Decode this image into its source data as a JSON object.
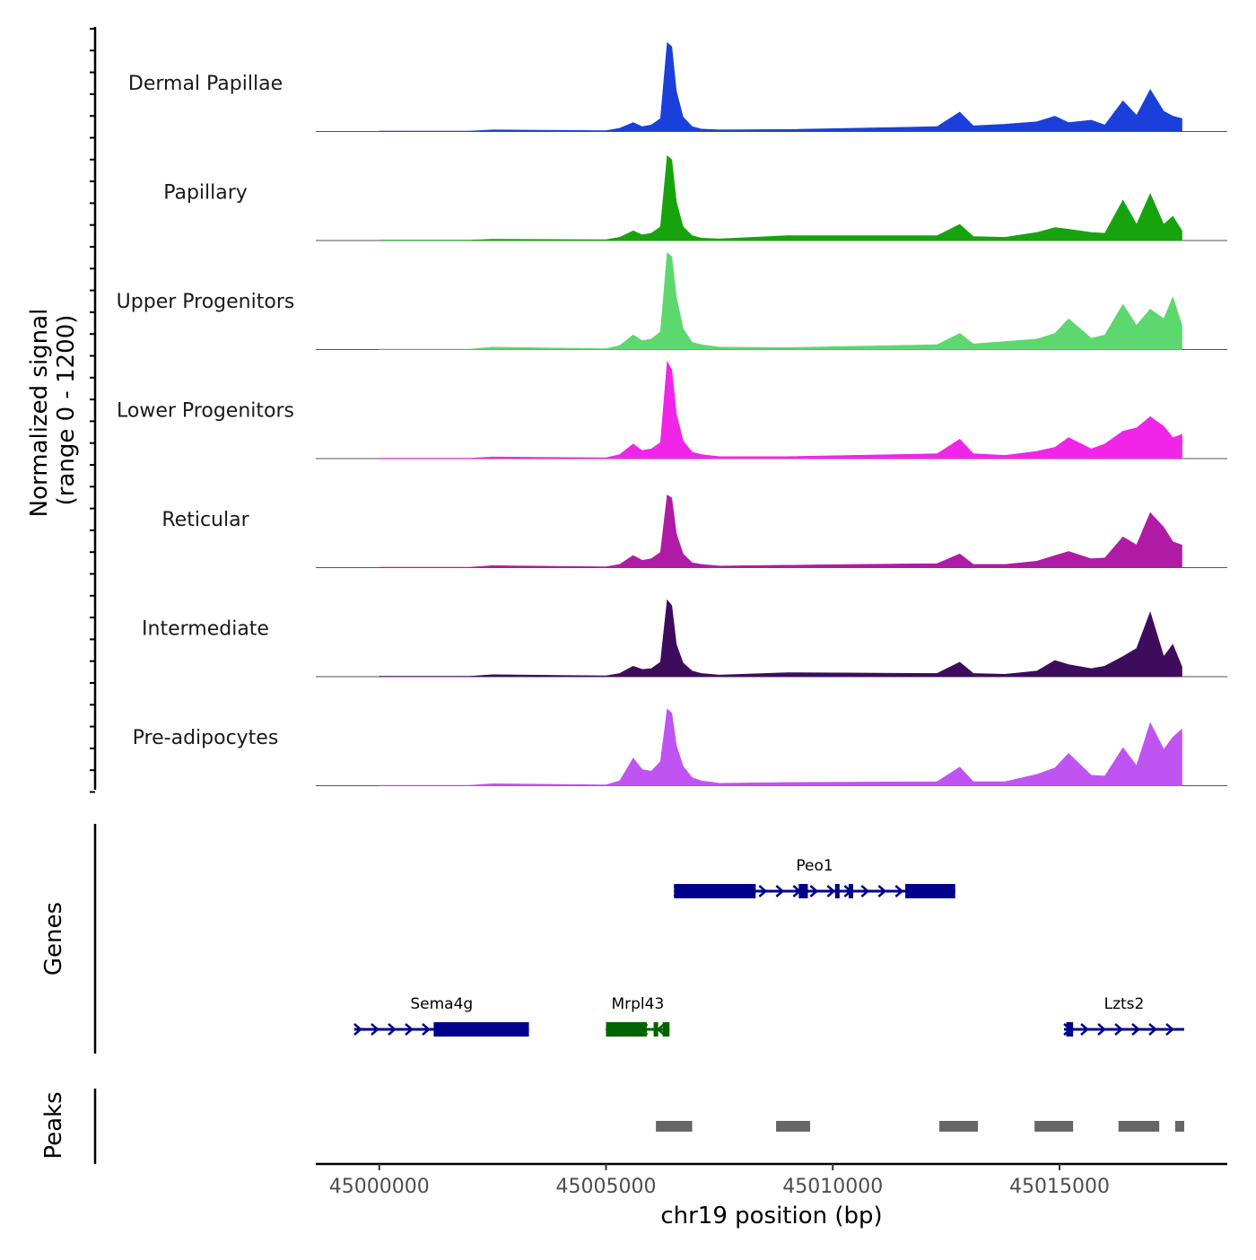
{
  "chart_data": {
    "type": "area",
    "title": "",
    "chromosome": "chr19",
    "xlim": [
      44998600,
      45018700
    ],
    "x_ticks": [
      45000000,
      45005000,
      45010000,
      45015000
    ],
    "x_tick_labels": [
      "45000000",
      "45005000",
      "45010000",
      "45015000"
    ],
    "xlabel": "chr19 position (bp)",
    "ylabel_line1": "Normalized signal",
    "ylabel_line2": "(range 0 - 1200)",
    "ylim": [
      0,
      1200
    ],
    "genes_label": "Genes",
    "peaks_label": "Peaks",
    "peak_color": "#666666",
    "series": [
      {
        "name": "Dermal Papillae",
        "color": "#1a3fdb",
        "x": [
          45000000,
          45002000,
          45002500,
          45005000,
          45005300,
          45005600,
          45005800,
          45006000,
          45006200,
          45006350,
          45006450,
          45006550,
          45006700,
          45006900,
          45007100,
          45007500,
          45009000,
          45012300,
          45012800,
          45013100,
          45013800,
          45014500,
          45014900,
          45015200,
          45015700,
          45016000,
          45016400,
          45016700,
          45017000,
          45017300,
          45017500,
          45017700
        ],
        "values": [
          5,
          6,
          20,
          10,
          40,
          110,
          60,
          80,
          160,
          1100,
          1050,
          500,
          180,
          60,
          30,
          20,
          25,
          60,
          240,
          70,
          90,
          120,
          190,
          110,
          140,
          80,
          380,
          200,
          520,
          250,
          190,
          160
        ]
      },
      {
        "name": "Papillary",
        "color": "#17a30e",
        "x": [
          45000000,
          45002000,
          45002500,
          45005000,
          45005300,
          45005600,
          45005800,
          45006000,
          45006200,
          45006350,
          45006450,
          45006550,
          45006700,
          45006900,
          45007100,
          45007500,
          45009000,
          45012300,
          45012800,
          45013100,
          45013800,
          45014500,
          45014900,
          45015200,
          45015700,
          45016000,
          45016400,
          45016700,
          45017000,
          45017300,
          45017500,
          45017700
        ],
        "values": [
          5,
          6,
          15,
          10,
          40,
          120,
          70,
          90,
          170,
          1050,
          1000,
          480,
          170,
          60,
          30,
          20,
          60,
          60,
          200,
          50,
          40,
          100,
          160,
          140,
          100,
          90,
          500,
          200,
          580,
          200,
          300,
          120
        ]
      },
      {
        "name": "Upper Progenitors",
        "color": "#5cd86e",
        "x": [
          45000000,
          45002000,
          45002500,
          45005000,
          45005300,
          45005600,
          45005800,
          45006000,
          45006200,
          45006350,
          45006450,
          45006550,
          45006700,
          45006900,
          45007100,
          45007500,
          45009000,
          45012300,
          45012800,
          45013100,
          45013800,
          45014500,
          45014900,
          45015200,
          45015700,
          45016000,
          45016400,
          45016700,
          45017000,
          45017300,
          45017500,
          45017700
        ],
        "values": [
          5,
          6,
          30,
          10,
          50,
          180,
          110,
          130,
          220,
          1200,
          1150,
          650,
          260,
          90,
          60,
          30,
          25,
          60,
          200,
          70,
          100,
          130,
          200,
          380,
          140,
          180,
          560,
          300,
          500,
          380,
          650,
          300
        ]
      },
      {
        "name": "Lower Progenitors",
        "color": "#f025e8",
        "x": [
          45000000,
          45002000,
          45002500,
          45005000,
          45005300,
          45005600,
          45005800,
          45006000,
          45006200,
          45006350,
          45006450,
          45006550,
          45006700,
          45006900,
          45007100,
          45007500,
          45009000,
          45012300,
          45012800,
          45013100,
          45013800,
          45014500,
          45014900,
          45015200,
          45015700,
          45016000,
          45016400,
          45016700,
          45017000,
          45017300,
          45017500,
          45017700
        ],
        "values": [
          5,
          6,
          20,
          10,
          50,
          180,
          100,
          120,
          200,
          1200,
          1100,
          550,
          220,
          80,
          50,
          25,
          25,
          60,
          240,
          60,
          40,
          90,
          140,
          260,
          120,
          180,
          340,
          380,
          520,
          400,
          260,
          300
        ]
      },
      {
        "name": "Reticular",
        "color": "#b01ba6",
        "x": [
          45000000,
          45002000,
          45002500,
          45005000,
          45005300,
          45005600,
          45005800,
          45006000,
          45006200,
          45006350,
          45006450,
          45006550,
          45006700,
          45006900,
          45007100,
          45007500,
          45009000,
          45012300,
          45012800,
          45013100,
          45013800,
          45014500,
          45014900,
          45015200,
          45015700,
          45016000,
          45016400,
          45016700,
          45017000,
          45017300,
          45017500,
          45017700
        ],
        "values": [
          5,
          6,
          25,
          10,
          40,
          150,
          90,
          110,
          190,
          900,
          860,
          420,
          170,
          60,
          40,
          20,
          30,
          50,
          170,
          40,
          40,
          80,
          150,
          200,
          110,
          120,
          380,
          280,
          680,
          500,
          320,
          280
        ]
      },
      {
        "name": "Intermediate",
        "color": "#3e0c5c",
        "x": [
          45000000,
          45002000,
          45002500,
          45005000,
          45005300,
          45005600,
          45005800,
          45006000,
          45006200,
          45006350,
          45006450,
          45006550,
          45006700,
          45006900,
          45007100,
          45007500,
          45009000,
          45012300,
          45012800,
          45013100,
          45013800,
          45014500,
          45014900,
          45015200,
          45015700,
          45016000,
          45016400,
          45016700,
          45017000,
          45017300,
          45017500,
          45017700
        ],
        "values": [
          5,
          6,
          25,
          10,
          40,
          130,
          90,
          100,
          180,
          950,
          880,
          400,
          170,
          70,
          40,
          20,
          50,
          40,
          180,
          40,
          30,
          70,
          200,
          150,
          100,
          130,
          250,
          350,
          800,
          250,
          400,
          120
        ]
      },
      {
        "name": "Pre-adipocytes",
        "color": "#c054f2",
        "x": [
          45000000,
          45002000,
          45002500,
          45005000,
          45005300,
          45005600,
          45005800,
          45006000,
          45006200,
          45006350,
          45006450,
          45006550,
          45006700,
          45006900,
          45007100,
          45007500,
          45009000,
          45012300,
          45012800,
          45013100,
          45013800,
          45014500,
          45014900,
          45015200,
          45015700,
          45016000,
          45016400,
          45016700,
          45017000,
          45017300,
          45017500,
          45017700
        ],
        "values": [
          5,
          6,
          25,
          10,
          60,
          340,
          200,
          180,
          300,
          950,
          900,
          500,
          240,
          100,
          60,
          30,
          40,
          50,
          230,
          50,
          50,
          140,
          220,
          400,
          130,
          120,
          470,
          250,
          780,
          450,
          600,
          700
        ]
      }
    ],
    "genes": [
      {
        "name": "Peo1",
        "strand": "+",
        "color": "#00008b",
        "row": 1,
        "start": 45006500,
        "end": 45012700,
        "exons": [
          [
            45006500,
            45008300
          ],
          [
            45009250,
            45009450
          ],
          [
            45010050,
            45010150
          ],
          [
            45010350,
            45010450
          ],
          [
            45011600,
            45012700
          ]
        ]
      },
      {
        "name": "Sema4g",
        "strand": "+",
        "color": "#00008b",
        "row": 2,
        "start": 44999450,
        "end": 45003300,
        "exons": [
          [
            45001200,
            45003300
          ]
        ]
      },
      {
        "name": "Mrpl43",
        "strand": "-",
        "color": "#006400",
        "row": 2,
        "start": 45005000,
        "end": 45006400,
        "exons": [
          [
            45005000,
            45005900
          ],
          [
            45006050,
            45006150
          ],
          [
            45006250,
            45006400
          ]
        ]
      },
      {
        "name": "Lzts2",
        "strand": "+",
        "color": "#00008b",
        "row": 2,
        "start": 45015100,
        "end": 45017750,
        "exons": [
          [
            45015150,
            45015300
          ]
        ]
      }
    ],
    "peaks": [
      [
        45006100,
        45006900
      ],
      [
        45008750,
        45009500
      ],
      [
        45012350,
        45013200
      ],
      [
        45014450,
        45015300
      ],
      [
        45016300,
        45017200
      ],
      [
        45017550,
        45017750
      ]
    ]
  }
}
